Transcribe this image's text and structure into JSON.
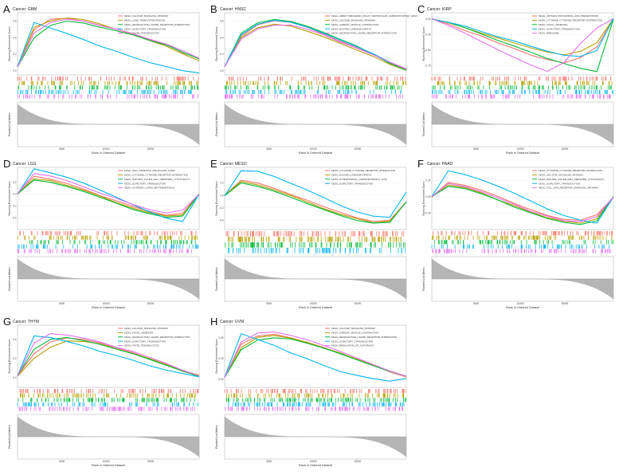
{
  "figure": {
    "yaxis_enrichment": "Running Enrichment Score",
    "yaxis_ranked": "Ranked List Metric",
    "xaxis": "Rank in Ordered Dataset",
    "series_colors": [
      "#f8766d",
      "#b79f00",
      "#00ba38",
      "#00b4ef",
      "#e46ff0"
    ]
  },
  "chart_data": [
    {
      "type": "line",
      "letter": "A",
      "cancer": "Cancer: GBM",
      "legend": [
        "KEGG_CALCIUM_SIGNALING_PATHWAY",
        "KEGG_LONG_TERM_POTENTIATION",
        "KEGG_NEUROACTIVE_LIGAND_RECEPTOR_INTERACTION",
        "KEGG_OLFACTORY_TRANSDUCTION",
        "KEGG_TASTE_TRANSDUCTION"
      ],
      "yticks": [
        "0.6",
        "0.4",
        "0.2",
        "0.0"
      ],
      "xticks": [
        "5000",
        "10000",
        "15000"
      ],
      "ylim": [
        -0.05,
        0.7
      ],
      "series": [
        {
          "name": "KEGG_CALCIUM_SIGNALING_PATHWAY",
          "values": [
            0.05,
            0.5,
            0.62,
            0.63,
            0.6,
            0.55,
            0.5,
            0.45,
            0.38,
            0.32,
            0.22,
            0.15
          ]
        },
        {
          "name": "KEGG_LONG_TERM_POTENTIATION",
          "values": [
            0.05,
            0.52,
            0.6,
            0.64,
            0.62,
            0.56,
            0.5,
            0.44,
            0.37,
            0.3,
            0.2,
            0.12
          ]
        },
        {
          "name": "KEGG_NEUROACTIVE_LIGAND_RECEPTOR_INTERACTION",
          "values": [
            0.05,
            0.4,
            0.55,
            0.6,
            0.58,
            0.53,
            0.48,
            0.43,
            0.37,
            0.31,
            0.22,
            0.14
          ]
        },
        {
          "name": "KEGG_OLFACTORY_TRANSDUCTION",
          "values": [
            0.05,
            0.58,
            0.52,
            0.45,
            0.38,
            0.3,
            0.23,
            0.16,
            0.1,
            0.05,
            0.0,
            -0.03
          ]
        },
        {
          "name": "KEGG_TASTE_TRANSDUCTION",
          "values": [
            0.05,
            0.45,
            0.58,
            0.62,
            0.6,
            0.55,
            0.5,
            0.44,
            0.38,
            0.32,
            0.24,
            0.15
          ]
        }
      ]
    },
    {
      "type": "line",
      "letter": "B",
      "cancer": "Cancer: HNSC",
      "legend": [
        "KEGG_ARRHYTHMOGENIC_RIGHT_VENTRICULAR_CARDIOMYOPATHY_ARVC",
        "KEGG_CALCIUM_SIGNALING_PATHWAY",
        "KEGG_CARDIAC_MUSCLE_CONTRACTION",
        "KEGG_DILATED_CARDIOMYOPATHY",
        "KEGG_NEUROACTIVE_LIGAND_RECEPTOR_INTERACTION"
      ],
      "yticks": [
        "0.6",
        "0.4",
        "0.2",
        "0.0"
      ],
      "xticks": [
        "5000",
        "10000",
        "15000"
      ],
      "ylim": [
        -0.05,
        0.7
      ],
      "series": [
        {
          "name": "KEGG_ARRHYTHMOGENIC_RIGHT_VENTRICULAR_CARDIOMYOPATHY_ARVC",
          "values": [
            0.05,
            0.42,
            0.55,
            0.6,
            0.58,
            0.52,
            0.44,
            0.36,
            0.28,
            0.2,
            0.1,
            0.02
          ]
        },
        {
          "name": "KEGG_CALCIUM_SIGNALING_PATHWAY",
          "values": [
            0.05,
            0.4,
            0.52,
            0.56,
            0.54,
            0.48,
            0.41,
            0.33,
            0.25,
            0.17,
            0.08,
            0.01
          ]
        },
        {
          "name": "KEGG_CARDIAC_MUSCLE_CONTRACTION",
          "values": [
            0.05,
            0.45,
            0.58,
            0.62,
            0.6,
            0.54,
            0.46,
            0.38,
            0.3,
            0.2,
            0.09,
            0.0
          ]
        },
        {
          "name": "KEGG_DILATED_CARDIOMYOPATHY",
          "values": [
            0.05,
            0.43,
            0.56,
            0.61,
            0.59,
            0.53,
            0.45,
            0.37,
            0.29,
            0.2,
            0.1,
            0.02
          ]
        },
        {
          "name": "KEGG_NEUROACTIVE_LIGAND_RECEPTOR_INTERACTION",
          "values": [
            0.05,
            0.38,
            0.5,
            0.55,
            0.55,
            0.5,
            0.43,
            0.35,
            0.27,
            0.19,
            0.1,
            0.02
          ]
        }
      ]
    },
    {
      "type": "line",
      "letter": "C",
      "cancer": "Cancer: KIRP",
      "legend": [
        "KEGG_ANTIGEN_PROCESSING_AND_PRESENTATION",
        "KEGG_CYTOKINE_CYTOKINE_RECEPTOR_INTERACTION",
        "KEGG_FOCAL_ADHESION",
        "KEGG_OLFACTORY_TRANSDUCTION",
        "KEGG_RIBOSOME"
      ],
      "yticks": [
        "0.00",
        "-0.25",
        "-0.50",
        "-0.75"
      ],
      "xticks": [
        "5000",
        "10000",
        "15000"
      ],
      "ylim": [
        -0.9,
        0.1
      ],
      "series": [
        {
          "name": "KEGG_ANTIGEN_PROCESSING_AND_PRESENTATION",
          "values": [
            0.0,
            -0.08,
            -0.18,
            -0.28,
            -0.38,
            -0.48,
            -0.58,
            -0.66,
            -0.7,
            -0.62,
            -0.45,
            0.0
          ]
        },
        {
          "name": "KEGG_CYTOKINE_CYTOKINE_RECEPTOR_INTERACTION",
          "values": [
            0.0,
            -0.06,
            -0.14,
            -0.22,
            -0.3,
            -0.38,
            -0.46,
            -0.54,
            -0.58,
            -0.52,
            -0.38,
            0.0
          ]
        },
        {
          "name": "KEGG_FOCAL_ADHESION",
          "values": [
            0.0,
            -0.06,
            -0.14,
            -0.24,
            -0.34,
            -0.44,
            -0.54,
            -0.64,
            -0.72,
            -0.8,
            -0.84,
            0.0
          ]
        },
        {
          "name": "KEGG_OLFACTORY_TRANSDUCTION",
          "values": [
            0.0,
            -0.05,
            -0.12,
            -0.2,
            -0.28,
            -0.36,
            -0.44,
            -0.52,
            -0.58,
            -0.6,
            -0.5,
            0.0
          ]
        },
        {
          "name": "KEGG_RIBOSOME",
          "values": [
            0.0,
            -0.1,
            -0.22,
            -0.36,
            -0.5,
            -0.62,
            -0.74,
            -0.84,
            -0.7,
            -0.4,
            -0.15,
            0.0
          ]
        }
      ]
    },
    {
      "type": "line",
      "letter": "D",
      "cancer": "Cancer: LGG",
      "legend": [
        "KEGG_CELL_ADHESION_MOLECULES_CAMS",
        "KEGG_CYTOKINE_CYTOKINE_RECEPTOR_INTERACTION",
        "KEGG_NATURAL_KILLER_CELL_MEDIATED_CYTOTOXICITY",
        "KEGG_OLFACTORY_TRANSDUCTION",
        "KEGG_SYSTEMIC_LUPUS_ERYTHEMATOSUS"
      ],
      "yticks": [
        "0.2",
        "0.0",
        "-0.2",
        "-0.4"
      ],
      "xticks": [
        "5000",
        "10000",
        "15000"
      ],
      "ylim": [
        -0.6,
        0.45
      ],
      "series": [
        {
          "name": "KEGG_CELL_ADHESION_MOLECULES_CAMS",
          "values": [
            0.0,
            0.3,
            0.25,
            0.18,
            0.08,
            -0.02,
            -0.12,
            -0.22,
            -0.3,
            -0.36,
            -0.32,
            0.0
          ]
        },
        {
          "name": "KEGG_CYTOKINE_CYTOKINE_RECEPTOR_INTERACTION",
          "values": [
            0.0,
            0.26,
            0.22,
            0.15,
            0.06,
            -0.04,
            -0.14,
            -0.24,
            -0.32,
            -0.38,
            -0.36,
            0.0
          ]
        },
        {
          "name": "KEGG_NATURAL_KILLER_CELL_MEDIATED_CYTOTOXICITY",
          "values": [
            0.0,
            0.24,
            0.2,
            0.13,
            0.04,
            -0.06,
            -0.16,
            -0.26,
            -0.34,
            -0.4,
            -0.38,
            0.0
          ]
        },
        {
          "name": "KEGG_OLFACTORY_TRANSDUCTION",
          "values": [
            0.0,
            0.42,
            0.36,
            0.28,
            0.18,
            0.06,
            -0.06,
            -0.18,
            -0.3,
            -0.4,
            -0.46,
            0.0
          ]
        },
        {
          "name": "KEGG_SYSTEMIC_LUPUS_ERYTHEMATOSUS",
          "values": [
            0.0,
            0.34,
            0.3,
            0.22,
            0.12,
            0.02,
            -0.08,
            -0.18,
            -0.26,
            -0.32,
            -0.28,
            0.0
          ]
        }
      ]
    },
    {
      "type": "line",
      "letter": "E",
      "cancer": "Cancer: MESO",
      "legend": [
        "KEGG_CYTOKINE_CYTOKINE_RECEPTOR_INTERACTION",
        "KEGG_DILATED_CARDIOMYOPATHY",
        "KEGG_HYPERTROPHIC_CARDIOMYOPATHY_HCM",
        "KEGG_OLFACTORY_TRANSDUCTION"
      ],
      "yticks": [
        "0.2",
        "0.0",
        "-0.2",
        "-0.4"
      ],
      "xticks": [
        "5000",
        "10000",
        "15000"
      ],
      "ylim": [
        -0.55,
        0.45
      ],
      "series": [
        {
          "name": "KEGG_CYTOKINE_CYTOKINE_RECEPTOR_INTERACTION",
          "values": [
            0.0,
            0.25,
            0.2,
            0.12,
            0.02,
            -0.08,
            -0.18,
            -0.28,
            -0.36,
            -0.42,
            -0.4,
            -0.1
          ]
        },
        {
          "name": "KEGG_DILATED_CARDIOMYOPATHY",
          "values": [
            0.0,
            0.22,
            0.17,
            0.09,
            -0.01,
            -0.11,
            -0.21,
            -0.3,
            -0.38,
            -0.44,
            -0.42,
            -0.1
          ]
        },
        {
          "name": "KEGG_HYPERTROPHIC_CARDIOMYOPATHY_HCM",
          "values": [
            0.0,
            0.2,
            0.15,
            0.07,
            -0.03,
            -0.13,
            -0.23,
            -0.32,
            -0.4,
            -0.45,
            -0.43,
            -0.1
          ]
        },
        {
          "name": "KEGG_OLFACTORY_TRANSDUCTION",
          "values": [
            0.0,
            0.4,
            0.38,
            0.3,
            0.2,
            0.08,
            -0.04,
            -0.16,
            -0.26,
            -0.34,
            -0.36,
            0.05
          ]
        }
      ]
    },
    {
      "type": "line",
      "letter": "F",
      "cancer": "Cancer: PAAD",
      "legend": [
        "KEGG_CYTOKINE_CYTOKINE_RECEPTOR_INTERACTION",
        "KEGG_JAK_STAT_SIGNALING_PATHWAY",
        "KEGG_NATURAL_KILLER_CELL_MEDIATED_CYTOTOXICITY",
        "KEGG_OLFACTORY_TRANSDUCTION",
        "KEGG_TOLL_LIKE_RECEPTOR_SIGNALING_PATHWAY"
      ],
      "yticks": [
        "0.25",
        "0.00",
        "-0.25"
      ],
      "xticks": [
        "5000",
        "10000",
        "15000"
      ],
      "ylim": [
        -0.5,
        0.45
      ],
      "series": [
        {
          "name": "KEGG_CYTOKINE_CYTOKINE_RECEPTOR_INTERACTION",
          "values": [
            0.0,
            0.22,
            0.18,
            0.1,
            0.0,
            -0.1,
            -0.2,
            -0.28,
            -0.34,
            -0.36,
            -0.28,
            0.0
          ]
        },
        {
          "name": "KEGG_JAK_STAT_SIGNALING_PATHWAY",
          "values": [
            0.0,
            0.18,
            0.14,
            0.06,
            -0.04,
            -0.14,
            -0.24,
            -0.32,
            -0.38,
            -0.4,
            -0.34,
            0.0
          ]
        },
        {
          "name": "KEGG_NATURAL_KILLER_CELL_MEDIATED_CYTOTOXICITY",
          "values": [
            0.0,
            0.16,
            0.12,
            0.05,
            -0.05,
            -0.15,
            -0.25,
            -0.33,
            -0.39,
            -0.42,
            -0.36,
            0.0
          ]
        },
        {
          "name": "KEGG_OLFACTORY_TRANSDUCTION",
          "values": [
            0.0,
            0.4,
            0.34,
            0.26,
            0.16,
            0.05,
            -0.07,
            -0.18,
            -0.28,
            -0.36,
            -0.4,
            0.0
          ]
        },
        {
          "name": "KEGG_TOLL_LIKE_RECEPTOR_SIGNALING_PATHWAY",
          "values": [
            0.0,
            0.2,
            0.16,
            0.08,
            -0.02,
            -0.12,
            -0.22,
            -0.3,
            -0.36,
            -0.38,
            -0.3,
            0.0
          ]
        }
      ]
    },
    {
      "type": "line",
      "letter": "G",
      "cancer": "Cancer: THYM",
      "legend": [
        "KEGG_CALCIUM_SIGNALING_PATHWAY",
        "KEGG_FOCAL_ADHESION",
        "KEGG_NEUROACTIVE_LIGAND_RECEPTOR_INTERACTION",
        "KEGG_OLFACTORY_TRANSDUCTION",
        "KEGG_TASTE_TRANSDUCTION"
      ],
      "yticks": [
        "0.4",
        "0.2",
        "0.0"
      ],
      "xticks": [
        "5000",
        "10000",
        "15000"
      ],
      "ylim": [
        -0.1,
        0.55
      ],
      "series": [
        {
          "name": "KEGG_CALCIUM_SIGNALING_PATHWAY",
          "values": [
            0.02,
            0.25,
            0.38,
            0.42,
            0.4,
            0.36,
            0.31,
            0.26,
            0.2,
            0.14,
            0.07,
            0.02
          ]
        },
        {
          "name": "KEGG_FOCAL_ADHESION",
          "values": [
            0.02,
            0.2,
            0.32,
            0.38,
            0.38,
            0.35,
            0.3,
            0.25,
            0.2,
            0.14,
            0.08,
            0.03
          ]
        },
        {
          "name": "KEGG_NEUROACTIVE_LIGAND_RECEPTOR_INTERACTION",
          "values": [
            0.02,
            0.3,
            0.4,
            0.42,
            0.39,
            0.35,
            0.3,
            0.25,
            0.19,
            0.13,
            0.07,
            0.02
          ]
        },
        {
          "name": "KEGG_OLFACTORY_TRANSDUCTION",
          "values": [
            0.02,
            0.44,
            0.42,
            0.38,
            0.33,
            0.28,
            0.23,
            0.18,
            0.13,
            0.08,
            0.04,
            0.01
          ]
        },
        {
          "name": "KEGG_TASTE_TRANSDUCTION",
          "values": [
            0.02,
            0.36,
            0.46,
            0.45,
            0.42,
            0.37,
            0.32,
            0.27,
            0.21,
            0.15,
            0.08,
            0.02
          ]
        }
      ]
    },
    {
      "type": "line",
      "letter": "H",
      "cancer": "Cancer: UVM",
      "legend": [
        "KEGG_CALCIUM_SIGNALING_PATHWAY",
        "KEGG_CARDIAC_MUSCLE_CONTRACTION",
        "KEGG_NEUROACTIVE_LIGAND_RECEPTOR_INTERACTION",
        "KEGG_OLFACTORY_TRANSDUCTION",
        "KEGG_REGULATION_OF_AUTOPHAGY"
      ],
      "yticks": [
        "0.50",
        "0.25",
        "0.00"
      ],
      "xticks": [
        "5000",
        "10000",
        "15000"
      ],
      "ylim": [
        -0.1,
        0.65
      ],
      "series": [
        {
          "name": "KEGG_CALCIUM_SIGNALING_PATHWAY",
          "values": [
            0.02,
            0.42,
            0.52,
            0.54,
            0.5,
            0.44,
            0.38,
            0.31,
            0.24,
            0.17,
            0.09,
            0.03
          ]
        },
        {
          "name": "KEGG_CARDIAC_MUSCLE_CONTRACTION",
          "values": [
            0.02,
            0.38,
            0.5,
            0.52,
            0.49,
            0.44,
            0.38,
            0.31,
            0.24,
            0.17,
            0.09,
            0.03
          ]
        },
        {
          "name": "KEGG_NEUROACTIVE_LIGAND_RECEPTOR_INTERACTION",
          "values": [
            0.02,
            0.35,
            0.47,
            0.5,
            0.48,
            0.43,
            0.37,
            0.3,
            0.23,
            0.16,
            0.09,
            0.03
          ]
        },
        {
          "name": "KEGG_OLFACTORY_TRANSDUCTION",
          "values": [
            0.02,
            0.55,
            0.48,
            0.4,
            0.32,
            0.24,
            0.16,
            0.09,
            0.04,
            0.0,
            -0.02,
            0.01
          ]
        },
        {
          "name": "KEGG_REGULATION_OF_AUTOPHAGY",
          "values": [
            0.02,
            0.45,
            0.56,
            0.57,
            0.53,
            0.47,
            0.4,
            0.33,
            0.25,
            0.18,
            0.1,
            0.03
          ]
        }
      ]
    }
  ]
}
